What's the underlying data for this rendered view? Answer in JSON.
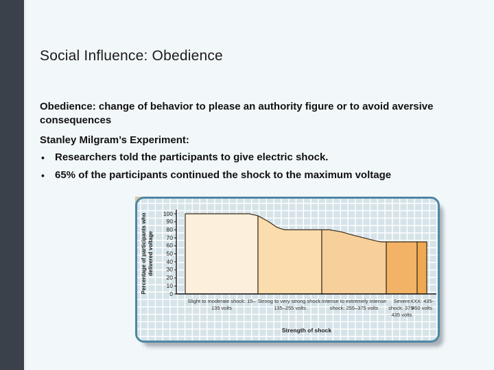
{
  "theme": {
    "slide_bg": "#f2f7fa",
    "sidebar": "#3a414b",
    "panel_border": "#4d87a3",
    "panel_bg": "#d6e3e9",
    "grid_line": "#ffffff",
    "segment_outline": "#3a2b16",
    "axis": "#1a1a1a"
  },
  "slide": {
    "title": "Social Influence: Obedience",
    "paragraph1": "Obedience: change of behavior to please an authority figure or to avoid aversive consequences",
    "paragraph2": "Stanley Milgram’s Experiment:",
    "bullet_glyph": "•",
    "bullets": [
      "Researchers told the participants to give electric shock.",
      "65% of the participants continued the shock to the maximum voltage"
    ]
  },
  "chart_data": {
    "type": "area",
    "title": "",
    "xlabel": "Strength of shock",
    "ylabel": "Percentage of participants who delivered voltage",
    "ylim": [
      0,
      100
    ],
    "yticks": [
      100,
      90,
      80,
      70,
      60,
      50,
      40,
      30,
      20,
      10,
      0
    ],
    "grid": true,
    "legend": "none",
    "segments": [
      {
        "label": "Slight to moderate shock: 15–135 volts",
        "volts_range": "15–135",
        "percent_start": 100,
        "percent_end": 97.5,
        "color": "#fcefdb",
        "profile": [
          [
            0,
            100
          ],
          [
            0.88,
            100
          ],
          [
            1,
            97.5
          ]
        ]
      },
      {
        "label": "Strong to very strong shock: 135–255 volts",
        "volts_range": "135–255",
        "percent_start": 97.5,
        "percent_end": 80,
        "color": "#fadcad",
        "profile": [
          [
            0,
            97.5
          ],
          [
            0.15,
            91
          ],
          [
            0.3,
            83
          ],
          [
            0.42,
            80
          ],
          [
            1,
            80
          ]
        ]
      },
      {
        "label": "Intense to extremely intense shock: 255–375 volts",
        "volts_range": "255–375",
        "percent_start": 80,
        "percent_end": 65,
        "color": "#f7cf9a",
        "profile": [
          [
            0,
            80
          ],
          [
            0.12,
            80
          ],
          [
            0.3,
            77.5
          ],
          [
            0.5,
            73
          ],
          [
            0.7,
            69
          ],
          [
            0.85,
            66
          ],
          [
            0.92,
            65
          ],
          [
            1,
            65
          ]
        ]
      },
      {
        "label": "Severe shock: 375-435 volts",
        "volts_range": "375-435",
        "percent_start": 65,
        "percent_end": 65,
        "color": "#f2b367",
        "profile": [
          [
            0,
            65
          ],
          [
            1,
            65
          ]
        ]
      },
      {
        "label": "XXX: 435-450 volts",
        "volts_range": "435-450",
        "percent_start": 65,
        "percent_end": 65,
        "color": "#efa951",
        "profile": [
          [
            0,
            65
          ],
          [
            1,
            65
          ]
        ]
      }
    ]
  }
}
